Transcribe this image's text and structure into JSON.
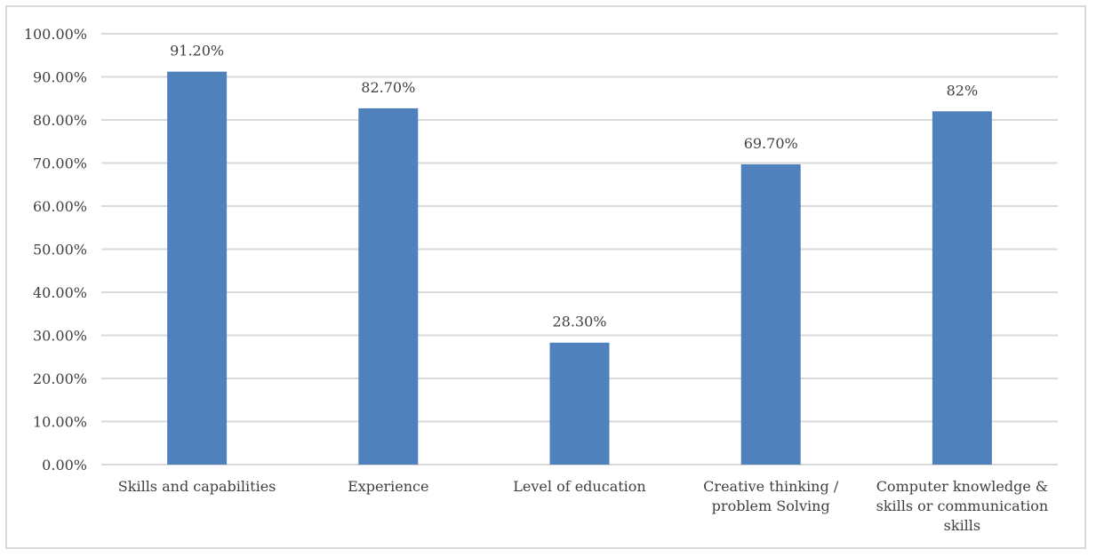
{
  "chart_data": {
    "type": "bar",
    "title": "",
    "xlabel": "",
    "ylabel": "",
    "ylim": [
      0,
      100
    ],
    "y_tick_step": 10,
    "y_tick_labels": [
      "0.00%",
      "10.00%",
      "20.00%",
      "30.00%",
      "40.00%",
      "50.00%",
      "60.00%",
      "70.00%",
      "80.00%",
      "90.00%",
      "100.00%"
    ],
    "grid": true,
    "legend": "none",
    "bar_color": "#4f81bd",
    "grid_color": "#d9d9d9",
    "categories": [
      [
        "Skills and capabilities"
      ],
      [
        "Experience"
      ],
      [
        "Level of education"
      ],
      [
        "Creative thinking /",
        "problem Solving"
      ],
      [
        "Computer knowledge &",
        "skills or communication",
        "skills"
      ]
    ],
    "values": [
      91.2,
      82.7,
      28.3,
      69.7,
      82
    ],
    "data_labels": [
      "91.20%",
      "82.70%",
      "28.30%",
      "69.70%",
      "82%"
    ]
  }
}
